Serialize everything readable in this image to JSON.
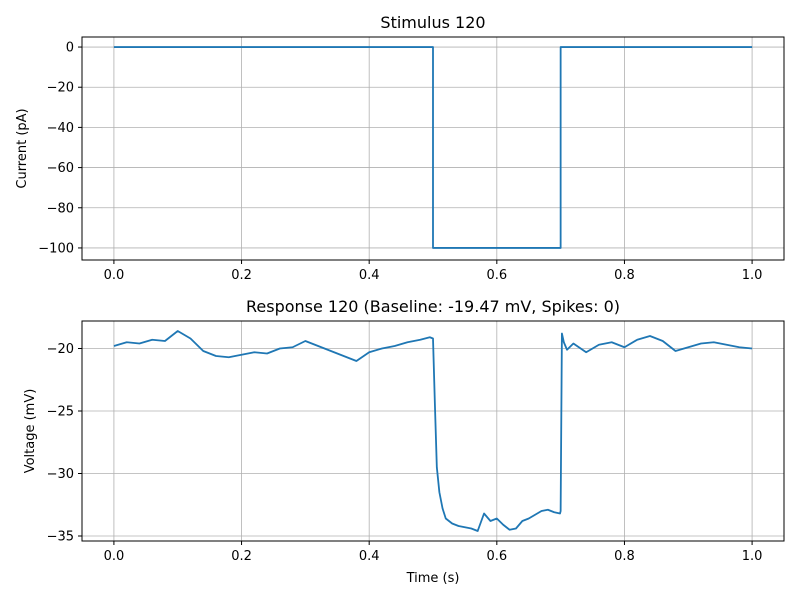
{
  "colors": {
    "trace": "#1f77b4"
  },
  "chart_data": [
    {
      "type": "line",
      "title": "Stimulus 120",
      "xlabel": "",
      "ylabel": "Current (pA)",
      "xlim": [
        -0.05,
        1.05
      ],
      "ylim": [
        -106,
        5
      ],
      "xticks": [
        0.0,
        0.2,
        0.4,
        0.6,
        0.8,
        1.0
      ],
      "xtick_labels": [
        "0.0",
        "0.2",
        "0.4",
        "0.6",
        "0.8",
        "1.0"
      ],
      "yticks": [
        0,
        -20,
        -40,
        -60,
        -80,
        -100
      ],
      "ytick_labels": [
        "0",
        "−20",
        "−40",
        "−60",
        "−80",
        "−100"
      ],
      "grid": true,
      "series": [
        {
          "x": [
            0.0,
            0.5,
            0.5,
            0.7,
            0.7,
            1.0
          ],
          "y": [
            0,
            0,
            -100,
            -100,
            0,
            0
          ]
        }
      ]
    },
    {
      "type": "line",
      "title": "Response 120 (Baseline: -19.47 mV, Spikes: 0)",
      "xlabel": "Time (s)",
      "ylabel": "Voltage (mV)",
      "xlim": [
        -0.05,
        1.05
      ],
      "ylim": [
        -35.4,
        -17.8
      ],
      "xticks": [
        0.0,
        0.2,
        0.4,
        0.6,
        0.8,
        1.0
      ],
      "xtick_labels": [
        "0.0",
        "0.2",
        "0.4",
        "0.6",
        "0.8",
        "1.0"
      ],
      "yticks": [
        -20,
        -25,
        -30,
        -35
      ],
      "ytick_labels": [
        "−20",
        "−25",
        "−30",
        "−35"
      ],
      "grid": true,
      "series": [
        {
          "x": [
            0.0,
            0.02,
            0.04,
            0.06,
            0.08,
            0.1,
            0.12,
            0.14,
            0.16,
            0.18,
            0.2,
            0.22,
            0.24,
            0.26,
            0.28,
            0.3,
            0.32,
            0.34,
            0.36,
            0.38,
            0.4,
            0.42,
            0.44,
            0.46,
            0.48,
            0.495,
            0.5,
            0.503,
            0.506,
            0.51,
            0.515,
            0.52,
            0.53,
            0.54,
            0.55,
            0.56,
            0.57,
            0.58,
            0.59,
            0.6,
            0.61,
            0.62,
            0.63,
            0.64,
            0.65,
            0.66,
            0.67,
            0.68,
            0.69,
            0.699,
            0.7,
            0.702,
            0.705,
            0.71,
            0.72,
            0.74,
            0.76,
            0.78,
            0.8,
            0.82,
            0.84,
            0.86,
            0.88,
            0.9,
            0.92,
            0.94,
            0.96,
            0.98,
            1.0
          ],
          "y": [
            -19.8,
            -19.5,
            -19.6,
            -19.3,
            -19.4,
            -18.6,
            -19.2,
            -20.2,
            -20.6,
            -20.7,
            -20.5,
            -20.3,
            -20.4,
            -20.0,
            -19.9,
            -19.4,
            -19.8,
            -20.2,
            -20.6,
            -21.0,
            -20.3,
            -20.0,
            -19.8,
            -19.5,
            -19.3,
            -19.1,
            -19.2,
            -24.5,
            -29.5,
            -31.5,
            -32.8,
            -33.6,
            -34.0,
            -34.2,
            -34.3,
            -34.4,
            -34.6,
            -33.2,
            -33.8,
            -33.6,
            -34.1,
            -34.5,
            -34.4,
            -33.8,
            -33.6,
            -33.3,
            -33.0,
            -32.9,
            -33.1,
            -33.2,
            -33.0,
            -18.8,
            -19.5,
            -20.1,
            -19.6,
            -20.3,
            -19.7,
            -19.5,
            -19.9,
            -19.3,
            -19.0,
            -19.4,
            -20.2,
            -19.9,
            -19.6,
            -19.5,
            -19.7,
            -19.9,
            -20.0
          ]
        }
      ]
    }
  ]
}
